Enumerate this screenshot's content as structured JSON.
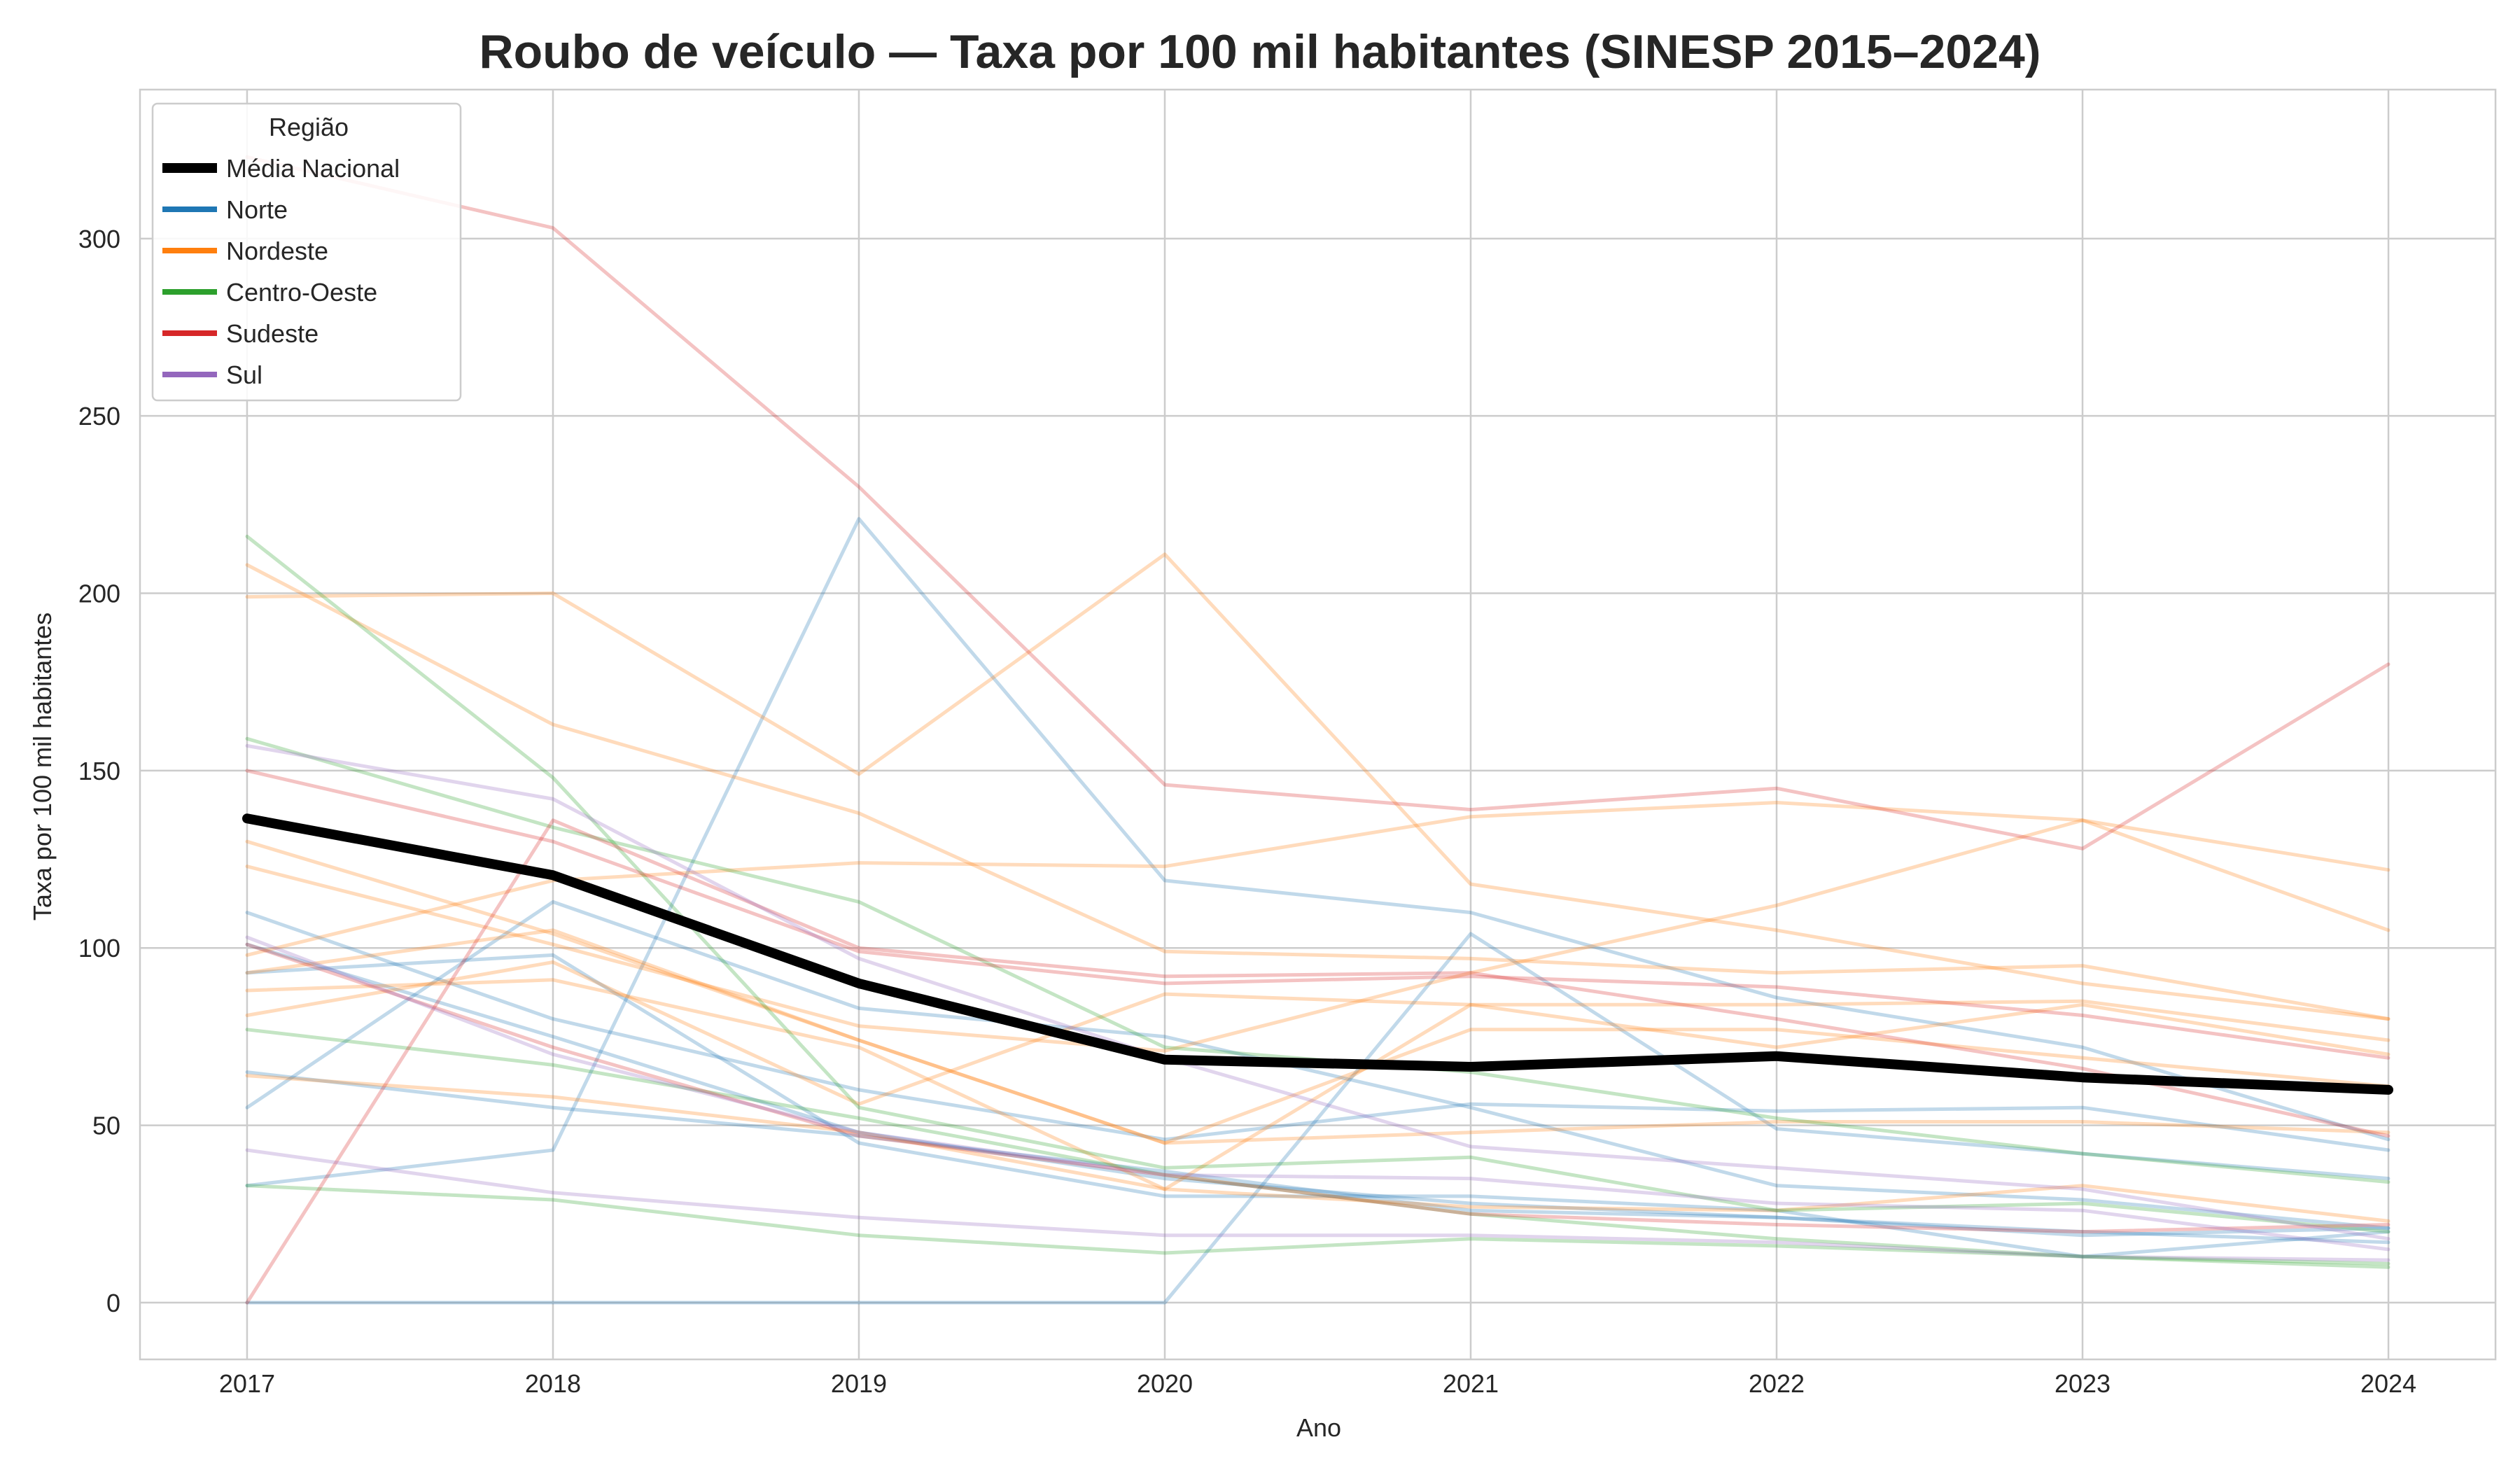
{
  "chart_data": {
    "type": "line",
    "title": "Roubo de veículo — Taxa por 100 mil habitantes (SINESP 2015–2024)",
    "xlabel": "Ano",
    "ylabel": "Taxa por 100 mil habitantes",
    "x": [
      2017,
      2018,
      2019,
      2020,
      2021,
      2022,
      2023,
      2024
    ],
    "ylim": [
      -16,
      342
    ],
    "yticks": [
      0,
      50,
      100,
      150,
      200,
      250,
      300
    ],
    "grid": true,
    "legend": {
      "title": "Região",
      "placement": "top-left",
      "entries": [
        "Média Nacional",
        "Norte",
        "Nordeste",
        "Centro-Oeste",
        "Sudeste",
        "Sul"
      ]
    },
    "colors": {
      "Média Nacional": "#000000",
      "Norte": "#1f77b4",
      "Nordeste": "#ff7f0e",
      "Centro-Oeste": "#2ca02c",
      "Sudeste": "#d62728",
      "Sul": "#9467bd"
    },
    "series": [
      {
        "name": "Média Nacional",
        "region": "Média Nacional",
        "values": [
          136.5,
          120.5,
          90,
          68.5,
          66.5,
          69.5,
          63.5,
          60
        ]
      },
      {
        "region": "Norte",
        "values": [
          110,
          80,
          60,
          46,
          56,
          54,
          55,
          43
        ]
      },
      {
        "region": "Norte",
        "values": [
          101,
          75,
          48,
          35,
          28,
          24,
          20,
          17
        ]
      },
      {
        "region": "Norte",
        "values": [
          93,
          98,
          45,
          30,
          30,
          26,
          13,
          20
        ]
      },
      {
        "region": "Norte",
        "values": [
          55,
          113,
          83,
          75,
          55,
          33,
          29,
          21
        ]
      },
      {
        "region": "Norte",
        "values": [
          33,
          43,
          221,
          119,
          110,
          86,
          72,
          46
        ]
      },
      {
        "region": "Norte",
        "values": [
          0,
          0,
          0,
          0,
          104,
          49,
          42,
          35
        ]
      },
      {
        "region": "Norte",
        "values": [
          65,
          55,
          47,
          37,
          26,
          24,
          19,
          21
        ]
      },
      {
        "region": "Nordeste",
        "values": [
          208,
          163,
          138,
          99,
          97,
          93,
          95,
          80
        ]
      },
      {
        "region": "Nordeste",
        "values": [
          199,
          200,
          149,
          211,
          118,
          105,
          90,
          80
        ]
      },
      {
        "region": "Nordeste",
        "values": [
          130,
          104,
          74,
          45,
          77,
          77,
          69,
          61
        ]
      },
      {
        "region": "Nordeste",
        "values": [
          123,
          101,
          78,
          71,
          93,
          112,
          136,
          105
        ]
      },
      {
        "region": "Nordeste",
        "values": [
          98,
          119,
          124,
          123,
          137,
          141,
          136,
          122
        ]
      },
      {
        "region": "Nordeste",
        "values": [
          88,
          91,
          72,
          32,
          84,
          84,
          85,
          74
        ]
      },
      {
        "region": "Nordeste",
        "values": [
          81,
          96,
          56,
          87,
          84,
          72,
          84,
          70
        ]
      },
      {
        "region": "Nordeste",
        "values": [
          93,
          105,
          74,
          45,
          48,
          51,
          51,
          48
        ]
      },
      {
        "region": "Nordeste",
        "values": [
          64,
          58,
          48,
          32,
          27,
          26,
          33,
          23
        ]
      },
      {
        "region": "Centro-Oeste",
        "values": [
          216,
          148,
          55,
          38,
          41,
          26,
          28,
          20
        ]
      },
      {
        "region": "Centro-Oeste",
        "values": [
          159,
          134,
          113,
          72,
          65,
          52,
          42,
          34
        ]
      },
      {
        "region": "Centro-Oeste",
        "values": [
          77,
          67,
          52,
          36,
          25,
          18,
          13,
          10
        ]
      },
      {
        "region": "Centro-Oeste",
        "values": [
          33,
          29,
          19,
          14,
          18,
          16,
          13,
          11
        ]
      },
      {
        "region": "Sudeste",
        "values": [
          0,
          136,
          100,
          92,
          93,
          80,
          66,
          47
        ]
      },
      {
        "region": "Sudeste",
        "values": [
          150,
          130,
          99,
          90,
          92,
          89,
          81,
          69
        ]
      },
      {
        "region": "Sudeste",
        "values": [
          323,
          303,
          230,
          146,
          139,
          145,
          128,
          180
        ]
      },
      {
        "region": "Sudeste",
        "values": [
          101,
          72,
          47,
          36,
          25,
          22,
          20,
          22
        ]
      },
      {
        "region": "Sul",
        "values": [
          157,
          142,
          97,
          69,
          44,
          38,
          32,
          18
        ]
      },
      {
        "region": "Sul",
        "values": [
          103,
          70,
          48,
          36,
          35,
          28,
          26,
          15
        ]
      },
      {
        "region": "Sul",
        "values": [
          43,
          31,
          24,
          19,
          19,
          17,
          13,
          12
        ]
      }
    ]
  }
}
